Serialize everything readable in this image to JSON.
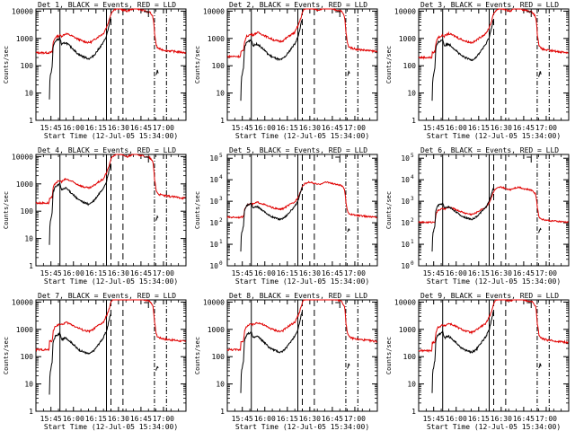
{
  "chart_data": {
    "type": "line",
    "x_tick_labels": [
      "15:45",
      "16:00",
      "16:15",
      "16:30",
      "16:45",
      "17:00"
    ],
    "x_ticks_minutes": [
      945,
      960,
      975,
      990,
      1005,
      1020
    ],
    "xlim_minutes": [
      935,
      1035
    ],
    "xlabel": "Start Time (12-Jul-05 15:34:00)",
    "ylabel": "Counts/sec",
    "yscale": "log",
    "ylim": [
      1,
      12000
    ],
    "legend_text": "BLACK = Events, RED = LLD",
    "colors": {
      "events": "#000000",
      "lld": "#e00000"
    },
    "grid": false,
    "markers": {
      "solid_minutes": [
        951,
        982
      ],
      "dashed_minutes": [
        985,
        993
      ],
      "dashdot_minutes": [
        1014,
        1022
      ]
    },
    "panels": [
      {
        "title": "Det 1",
        "tick_style": "plain",
        "y_tick_labels": [
          "1",
          "10",
          "100",
          "1000",
          "10000"
        ],
        "lld_scale": 1.0,
        "events_scale": 1.0,
        "baseline": 300
      },
      {
        "title": "Det 2",
        "tick_style": "plain",
        "y_tick_labels": [
          "1",
          "10",
          "100",
          "1000",
          "10000"
        ],
        "lld_scale": 1.1,
        "events_scale": 0.9,
        "baseline": 200
      },
      {
        "title": "Det 3",
        "tick_style": "plain",
        "y_tick_labels": [
          "1",
          "10",
          "100",
          "1000",
          "10000"
        ],
        "lld_scale": 1.0,
        "events_scale": 0.9,
        "baseline": 200
      },
      {
        "title": "Det 4",
        "tick_style": "plain",
        "y_tick_labels": [
          "1",
          "10",
          "100",
          "1000",
          "10000"
        ],
        "lld_scale": 1.0,
        "events_scale": 1.0,
        "baseline": 200
      },
      {
        "title": "Det 5",
        "tick_style": "power",
        "y_tick_labels": [
          "0",
          "1",
          "2",
          "3",
          "4",
          "5"
        ],
        "lld_scale": 0.6,
        "events_scale": 0.8,
        "baseline": 300,
        "ylim": [
          1,
          150000
        ]
      },
      {
        "title": "Det 6",
        "tick_style": "power",
        "y_tick_labels": [
          "0",
          "1",
          "2",
          "3",
          "4",
          "5"
        ],
        "lld_scale": 0.35,
        "events_scale": 0.8,
        "baseline": 300,
        "ylim": [
          1,
          150000
        ]
      },
      {
        "title": "Det 7",
        "tick_style": "plain",
        "y_tick_labels": [
          "1",
          "10",
          "100",
          "1000",
          "10000"
        ],
        "lld_scale": 1.2,
        "events_scale": 0.7,
        "baseline": 150
      },
      {
        "title": "Det 8",
        "tick_style": "plain",
        "y_tick_labels": [
          "1",
          "10",
          "100",
          "1000",
          "10000"
        ],
        "lld_scale": 1.2,
        "events_scale": 0.8,
        "baseline": 150
      },
      {
        "title": "Det 9",
        "tick_style": "plain",
        "y_tick_labels": [
          "1",
          "10",
          "100",
          "1000",
          "10000"
        ],
        "lld_scale": 1.1,
        "events_scale": 0.8,
        "baseline": 150
      }
    ],
    "series": [
      {
        "name": "LLD",
        "color": "red",
        "x": [
          935,
          944,
          946,
          946.5,
          948,
          951,
          952,
          955,
          958,
          962,
          964,
          966,
          968,
          970,
          972,
          974,
          976,
          978,
          980,
          982,
          983,
          984,
          985,
          986,
          988,
          990,
          993,
          996,
          999,
          1002,
          1005,
          1008,
          1011,
          1013,
          1014,
          1015,
          1016,
          1018,
          1022,
          1026,
          1030,
          1035
        ],
        "values": [
          300,
          300,
          320,
          700,
          1100,
          1300,
          1200,
          1500,
          1300,
          1000,
          900,
          800,
          750,
          700,
          750,
          900,
          1100,
          1300,
          1500,
          2500,
          3500,
          5000,
          8000,
          10000,
          12000,
          13000,
          11000,
          10000,
          12000,
          13000,
          11000,
          10000,
          9000,
          6000,
          1500,
          600,
          450,
          400,
          360,
          340,
          320,
          300
        ]
      },
      {
        "name": "Events",
        "color": "black",
        "x": [
          944,
          944.5,
          945,
          946,
          946.5,
          948,
          951,
          952,
          955,
          958,
          962,
          964,
          966,
          968,
          970,
          972,
          974,
          976,
          978,
          980,
          982,
          983,
          984,
          985
        ],
        "values": [
          6,
          40,
          50,
          100,
          500,
          800,
          1000,
          600,
          700,
          500,
          300,
          250,
          220,
          200,
          180,
          200,
          250,
          350,
          500,
          700,
          1200,
          2000,
          3500,
          6000
        ]
      },
      {
        "name": "Events",
        "color": "black",
        "x": [
          1015,
          1015.5,
          1016,
          1016.5
        ],
        "values": [
          45,
          50,
          70,
          55
        ]
      }
    ]
  }
}
